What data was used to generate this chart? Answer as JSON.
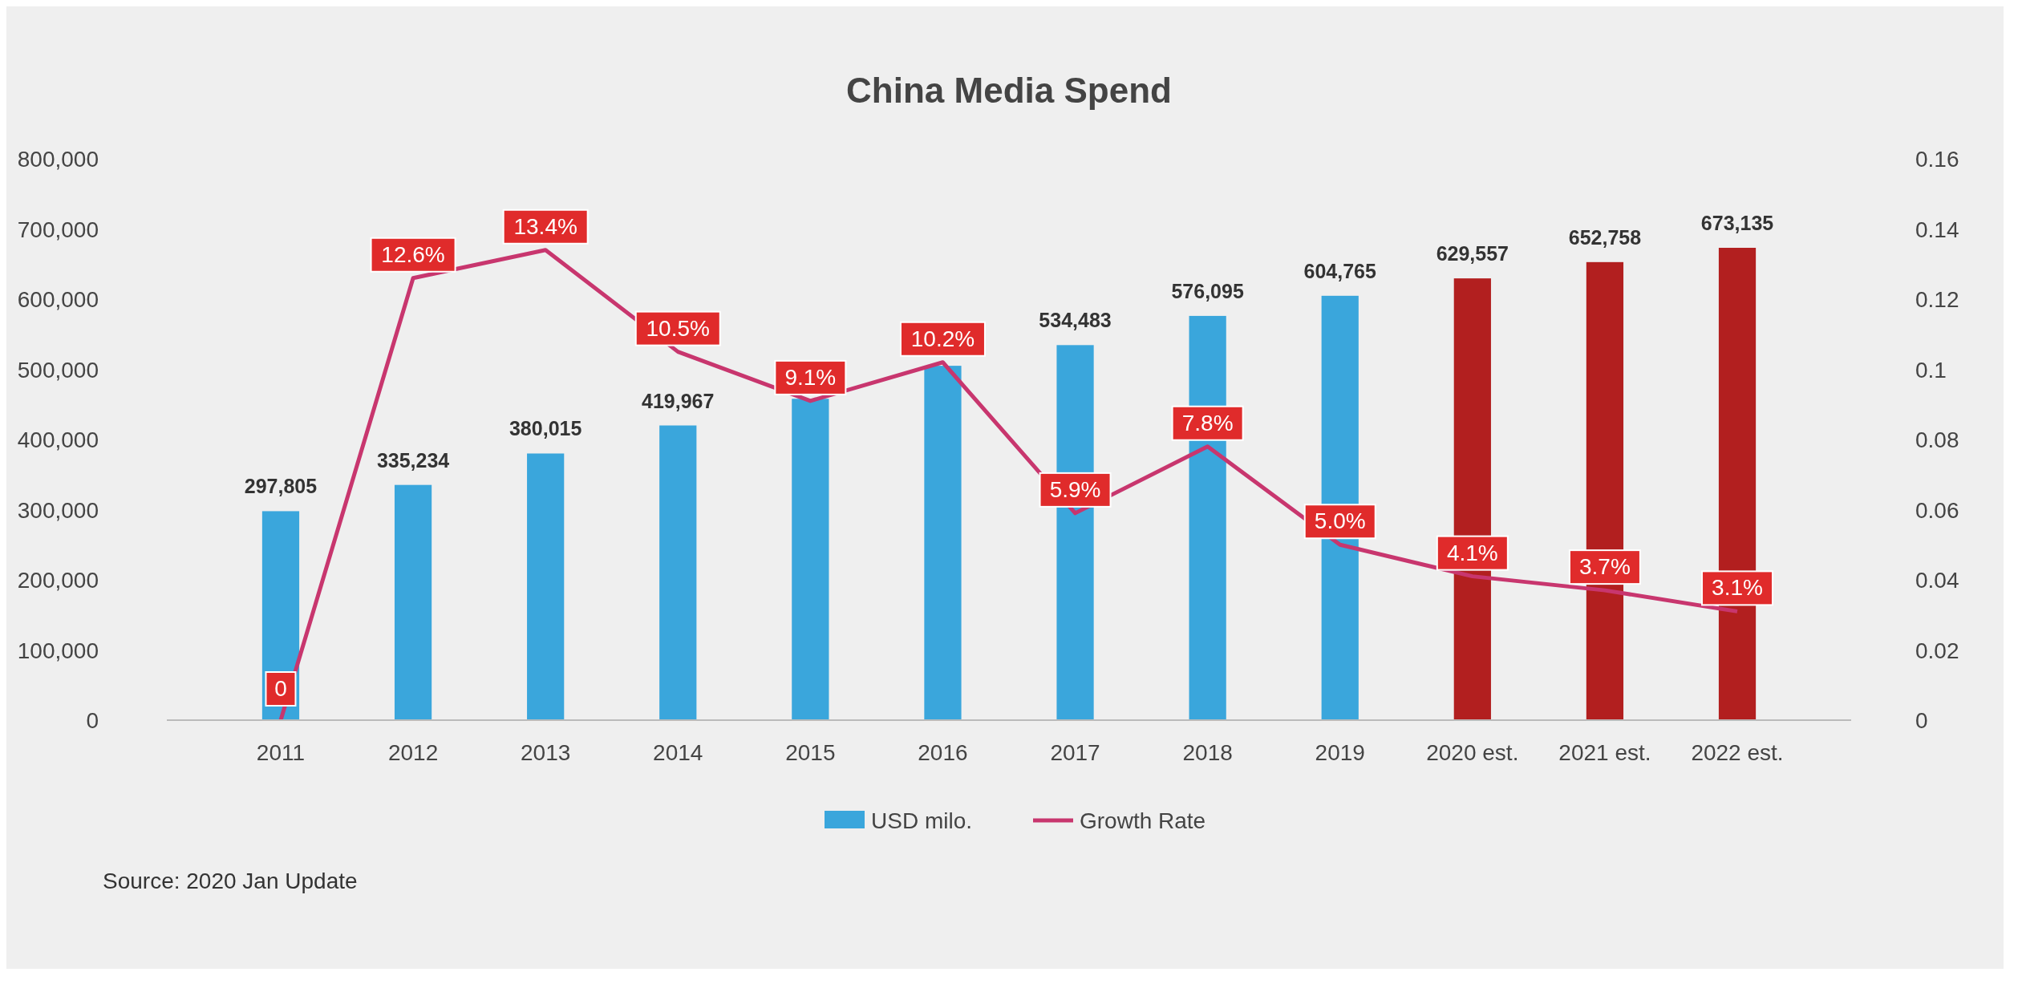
{
  "chart_data": {
    "type": "bar",
    "title": "China Media Spend",
    "categories": [
      "2011",
      "2012",
      "2013",
      "2014",
      "2015",
      "2016",
      "2017",
      "2018",
      "2019",
      "2020 est.",
      "2021 est.",
      "2022 est."
    ],
    "series": [
      {
        "name": "USD milo.",
        "color": "#3aa6dc",
        "colors": [
          "#3aa6dc",
          "#3aa6dc",
          "#3aa6dc",
          "#3aa6dc",
          "#3aa6dc",
          "#3aa6dc",
          "#3aa6dc",
          "#3aa6dc",
          "#3aa6dc",
          "#b21f1f",
          "#b21f1f",
          "#b21f1f"
        ],
        "values": [
          297805,
          335234,
          380015,
          419967,
          458000,
          505000,
          534483,
          576095,
          604765,
          629557,
          652758,
          673135
        ],
        "value_labels": [
          "297,805",
          "335,234",
          "380,015",
          "419,967",
          null,
          null,
          "534,483",
          "576,095",
          "604,765",
          "629,557",
          "652,758",
          "673,135"
        ]
      },
      {
        "name": "Growth Rate",
        "type": "line",
        "axis": "y2",
        "color": "#c8366e",
        "values": [
          0,
          0.126,
          0.134,
          0.105,
          0.091,
          0.102,
          0.059,
          0.078,
          0.05,
          0.041,
          0.037,
          0.031
        ],
        "value_labels": [
          "0",
          "12.6%",
          "13.4%",
          "10.5%",
          "9.1%",
          "10.2%",
          "5.9%",
          "7.8%",
          "5.0%",
          "4.1%",
          "3.7%",
          "3.1%"
        ]
      }
    ],
    "ylim": [
      0,
      800000
    ],
    "yticks": [
      {
        "value": 0,
        "label": "0"
      },
      {
        "value": 100000,
        "label": "100,000"
      },
      {
        "value": 200000,
        "label": "200,000"
      },
      {
        "value": 300000,
        "label": "300,000"
      },
      {
        "value": 400000,
        "label": "400,000"
      },
      {
        "value": 500000,
        "label": "500,000"
      },
      {
        "value": 600000,
        "label": "600,000"
      },
      {
        "value": 700000,
        "label": "700,000"
      },
      {
        "value": 800000,
        "label": "800,000"
      }
    ],
    "y2lim": [
      0,
      0.16
    ],
    "y2ticks": [
      0,
      0.02,
      0.04,
      0.06,
      0.08,
      0.1,
      0.12,
      0.14,
      0.16
    ],
    "grid": false,
    "legend": "bottom",
    "marker": "none",
    "annotations": [
      "Source: 2020 Jan Update"
    ]
  }
}
